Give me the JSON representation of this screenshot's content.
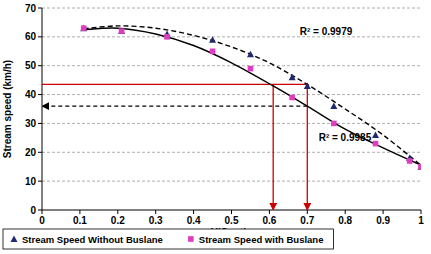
{
  "chart_data": {
    "type": "scatter",
    "x_label": "V/C ratio",
    "y_label": "Stream speed (km/h)",
    "xlim": [
      0,
      1
    ],
    "xticks": [
      0,
      0.1,
      0.2,
      0.3,
      0.4,
      0.5,
      0.6,
      0.7,
      0.8,
      0.9,
      1
    ],
    "ylim": [
      0,
      70
    ],
    "yticks": [
      0,
      10,
      20,
      30,
      40,
      50,
      60,
      70
    ],
    "grid": true,
    "legend": "bottom",
    "series": [
      {
        "name": "Stream Speed Without Buslane",
        "type": "scatter",
        "marker": "triangle",
        "color": "#1f2a6e",
        "x": [
          0.11,
          0.21,
          0.33,
          0.45,
          0.55,
          0.66,
          0.7,
          0.77,
          0.88,
          0.97,
          1.0
        ],
        "values": [
          63,
          62,
          61,
          59,
          54,
          46,
          43,
          36,
          26,
          18,
          15
        ]
      },
      {
        "name": "Stream Speed with Buslane",
        "type": "scatter",
        "marker": "square",
        "color": "#e03cbf",
        "x": [
          0.11,
          0.21,
          0.33,
          0.45,
          0.55,
          0.66,
          0.77,
          0.88,
          0.97,
          1.0
        ],
        "values": [
          63,
          62,
          60,
          55,
          49,
          39,
          30,
          23,
          17,
          15
        ]
      },
      {
        "type": "line",
        "line_style": "dashed",
        "color": "#000000",
        "x": [
          0.11,
          0.2,
          0.3,
          0.4,
          0.5,
          0.6,
          0.7,
          0.8,
          0.9,
          1.0
        ],
        "values": [
          62.8,
          63.8,
          63,
          60.5,
          56.5,
          51,
          43.5,
          35,
          26,
          15.5
        ]
      },
      {
        "type": "line",
        "line_style": "solid",
        "color": "#000000",
        "x": [
          0.11,
          0.2,
          0.3,
          0.4,
          0.5,
          0.61,
          0.7,
          0.8,
          0.9,
          1.0
        ],
        "values": [
          62.5,
          63,
          61,
          57,
          51,
          43,
          36,
          28,
          21.5,
          15.5
        ]
      }
    ],
    "annotations": [
      {
        "text": "R² = 0.9979",
        "x": 0.68,
        "y": 60.5
      },
      {
        "text": "R² = 0.9985",
        "x": 0.73,
        "y": 24
      }
    ],
    "guides": [
      {
        "from": [
          0,
          43.5
        ],
        "to": [
          0.7,
          43.5
        ],
        "color": "#cc0000",
        "line_style": "solid",
        "marker": "none"
      },
      {
        "from": [
          0.61,
          43.5
        ],
        "to": [
          0.61,
          0
        ],
        "color": "#cc0000",
        "line_style": "solid",
        "marker": "arrow"
      },
      {
        "from": [
          0.7,
          43.5
        ],
        "to": [
          0.7,
          0
        ],
        "color": "#cc0000",
        "line_style": "solid",
        "marker": "arrow"
      },
      {
        "from": [
          0.7,
          36
        ],
        "to": [
          0,
          36
        ],
        "color": "#000000",
        "line_style": "dashed",
        "marker": "arrow"
      }
    ]
  }
}
